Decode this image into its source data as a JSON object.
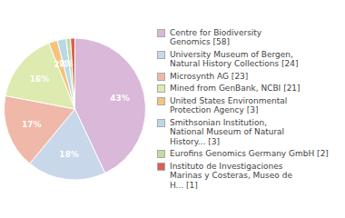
{
  "chart_data": {
    "type": "pie",
    "categories": [
      "Centre for Biodiversity\nGenomics [58]",
      "University Museum of Bergen,\nNatural History Collections [24]",
      "Microsynth AG [23]",
      "Mined from GenBank, NCBI [21]",
      "United States Environmental\nProtection Agency [3]",
      "Smithsonian Institution,\nNational Museum of Natural\nHistory... [3]",
      "Eurofins Genomics Germany GmbH [2]",
      "Instituto de Investigaciones\nMarinas y Costeras, Museo de\nH... [1]"
    ],
    "values": [
      43,
      18,
      17,
      16,
      2,
      2,
      1,
      1
    ],
    "value_labels": [
      "43%",
      "18%",
      "17%",
      "16%",
      "2%",
      "2%",
      null,
      null
    ],
    "colors": [
      "#d9b8d9",
      "#c8d8ea",
      "#f0b8a8",
      "#ddeab0",
      "#f5c47a",
      "#b8d8e8",
      "#c0dca0",
      "#d96050"
    ],
    "data_labels": true,
    "legend": "right"
  }
}
